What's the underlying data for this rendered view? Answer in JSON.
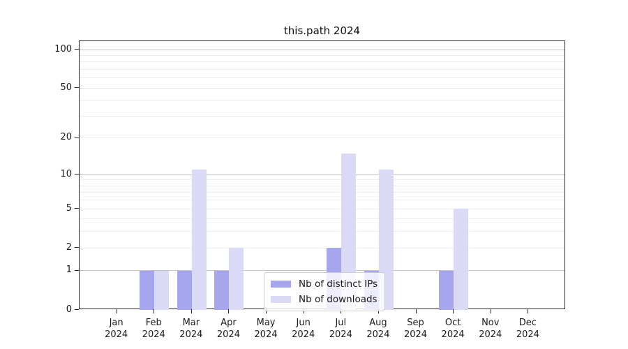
{
  "chart_data": {
    "type": "bar",
    "title": "this.path 2024",
    "categories": [
      "Jan",
      "Feb",
      "Mar",
      "Apr",
      "May",
      "Jun",
      "Jul",
      "Aug",
      "Sep",
      "Oct",
      "Nov",
      "Dec"
    ],
    "category_year": "2024",
    "series": [
      {
        "name": "Nb of distinct IPs",
        "color": "#a6a6ef",
        "values": [
          0,
          1,
          1,
          1,
          0,
          0,
          2,
          1,
          0,
          1,
          0,
          0
        ]
      },
      {
        "name": "Nb of downloads",
        "color": "#dadaf6",
        "values": [
          0,
          1,
          11,
          2,
          0,
          0,
          15,
          11,
          0,
          5,
          0,
          0
        ]
      }
    ],
    "y_axis": {
      "scale": "log1p",
      "tick_values": [
        0,
        1,
        2,
        5,
        10,
        20,
        50,
        100
      ],
      "max": 100,
      "major_gridlines": [
        1,
        10,
        100
      ],
      "minor_gridlines": [
        2,
        3,
        4,
        5,
        6,
        7,
        8,
        9,
        20,
        30,
        40,
        50,
        60,
        70,
        80,
        90
      ]
    },
    "x_axis": {
      "label_line1_from": "categories",
      "label_line2": "2024"
    },
    "legend": {
      "position": "inside-bottom-center",
      "entries": [
        "Nb of distinct IPs",
        "Nb of downloads"
      ]
    },
    "grid": true,
    "colors": {
      "bar_distinct_ips": "#a6a6ef",
      "bar_downloads": "#dadaf6",
      "gridline_major": "#c3c3c3",
      "gridline_minor": "#ececec",
      "spine": "#262626",
      "text": "#1a1a1a",
      "background": "#ffffff"
    }
  }
}
